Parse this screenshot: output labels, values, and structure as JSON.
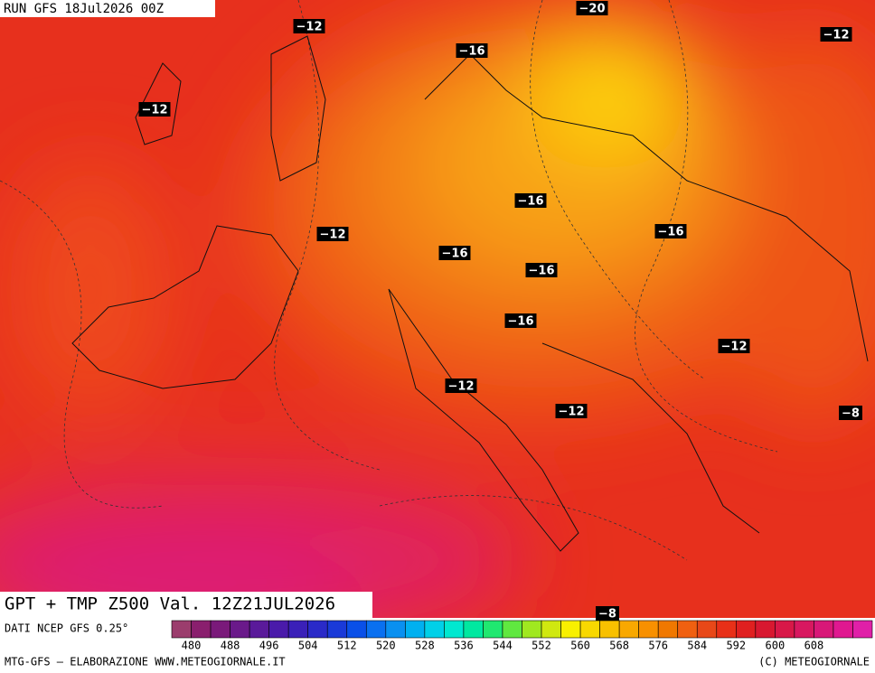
{
  "header": {
    "run": "RUN GFS 18Jul2026 00Z"
  },
  "map": {
    "title": "GPT + TMP Z500 Val. 12Z21JUL2026",
    "contour_labels": [
      "−12",
      "−16",
      "−20",
      "−12",
      "−12",
      "−16",
      "−16",
      "−12",
      "−16",
      "−16",
      "−16",
      "−12",
      "−12",
      "−12",
      "−8",
      "−8"
    ]
  },
  "legend": {
    "source": "DATI NCEP GFS 0.25°",
    "labels": [
      480,
      488,
      496,
      504,
      512,
      520,
      528,
      536,
      544,
      552,
      560,
      568,
      576,
      584,
      592,
      600,
      608
    ]
  },
  "footer": {
    "left": "MTG-GFS — ELABORAZIONE WWW.METEOGIORNALE.IT",
    "right": "(C) METEOGIORNALE"
  }
}
